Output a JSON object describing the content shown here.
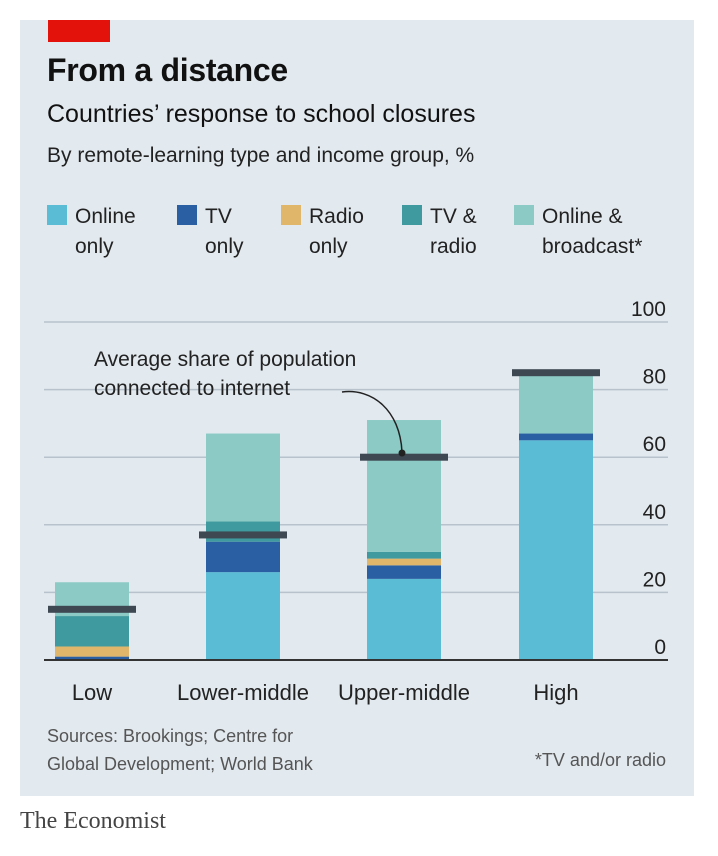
{
  "header": {
    "title": "From a distance",
    "subtitle": "Countries’ response to school closures",
    "description": "By remote-learning type and income group, %"
  },
  "legend": [
    {
      "label": "Online\nonly",
      "color": "#5bbcd6"
    },
    {
      "label": "TV\nonly",
      "color": "#2b5fa3"
    },
    {
      "label": "Radio\nonly",
      "color": "#e0b66a"
    },
    {
      "label": "TV &\nradio",
      "color": "#3e9a9e"
    },
    {
      "label": "Online &\nbroadcast*",
      "color": "#8ccac5"
    }
  ],
  "colors": {
    "brand_red": "#e3120b",
    "panel": "#e2e9ef",
    "internet_marker": "#3d4852",
    "grid": "#b7c2cc"
  },
  "chart_data": {
    "type": "bar",
    "stacked": true,
    "categories": [
      "Low",
      "Lower-middle",
      "Upper-middle",
      "High"
    ],
    "series": [
      {
        "name": "Online only",
        "values": [
          0,
          26,
          24,
          65
        ]
      },
      {
        "name": "TV only",
        "values": [
          1,
          9,
          4,
          2
        ]
      },
      {
        "name": "Radio only",
        "values": [
          3,
          0,
          2,
          0
        ]
      },
      {
        "name": "TV & radio",
        "values": [
          9,
          6,
          2,
          0
        ]
      },
      {
        "name": "Online & broadcast*",
        "values": [
          10,
          26,
          39,
          18
        ]
      }
    ],
    "internet_share": [
      15,
      37,
      60,
      85
    ],
    "annotation": "Average share of population\nconnected to internet",
    "ylim": [
      0,
      100
    ],
    "yticks": [
      0,
      20,
      40,
      60,
      80,
      100
    ],
    "grid": true,
    "legend_position": "top"
  },
  "footer": {
    "sources": "Sources: Brookings; Centre for\nGlobal Development; World Bank",
    "footnote": "*TV and/or radio",
    "brand": "The Economist"
  }
}
